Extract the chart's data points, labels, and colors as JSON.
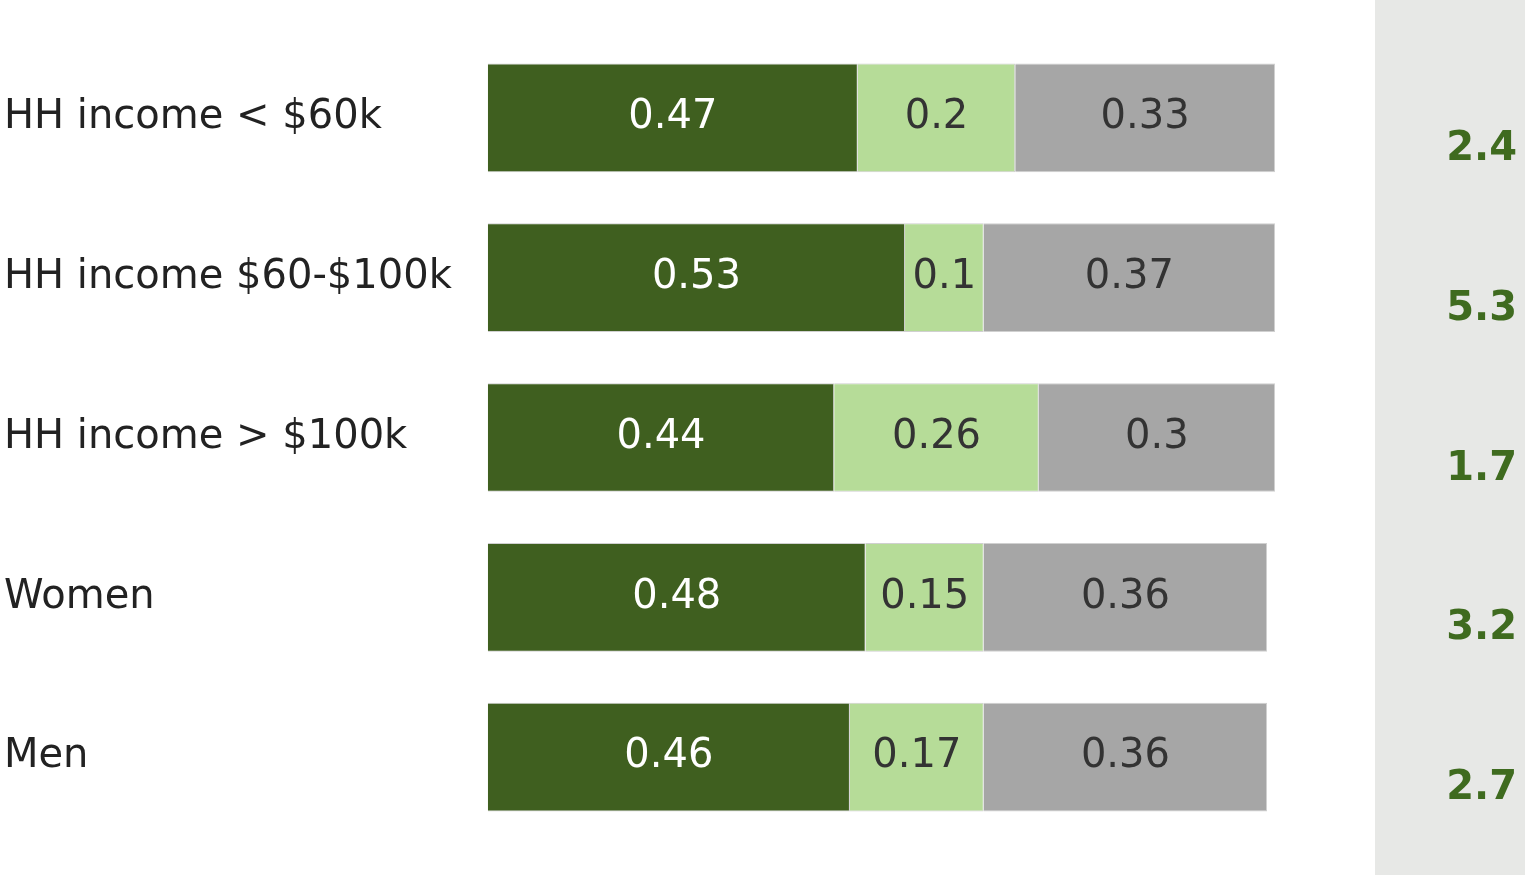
{
  "chart_data": {
    "type": "bar",
    "orientation": "horizontal",
    "stacked": true,
    "categories": [
      "HH income < $60k",
      "HH income $60-$100k",
      "HH income > $100k",
      "Women",
      "Men"
    ],
    "series": [
      {
        "color": "#3f5f1f",
        "values": [
          0.47,
          0.53,
          0.44,
          0.48,
          0.46
        ]
      },
      {
        "color": "#b6dc98",
        "values": [
          0.2,
          0.1,
          0.26,
          0.15,
          0.17
        ]
      },
      {
        "color": "#a6a6a6",
        "values": [
          0.33,
          0.37,
          0.3,
          0.36,
          0.36
        ]
      }
    ],
    "xlim": [
      0,
      1
    ],
    "tick_labels": "y",
    "legend": false,
    "data_labels": true,
    "annotations": [
      "2.4",
      "5.3",
      "1.7",
      "3.2",
      "2.7"
    ]
  }
}
